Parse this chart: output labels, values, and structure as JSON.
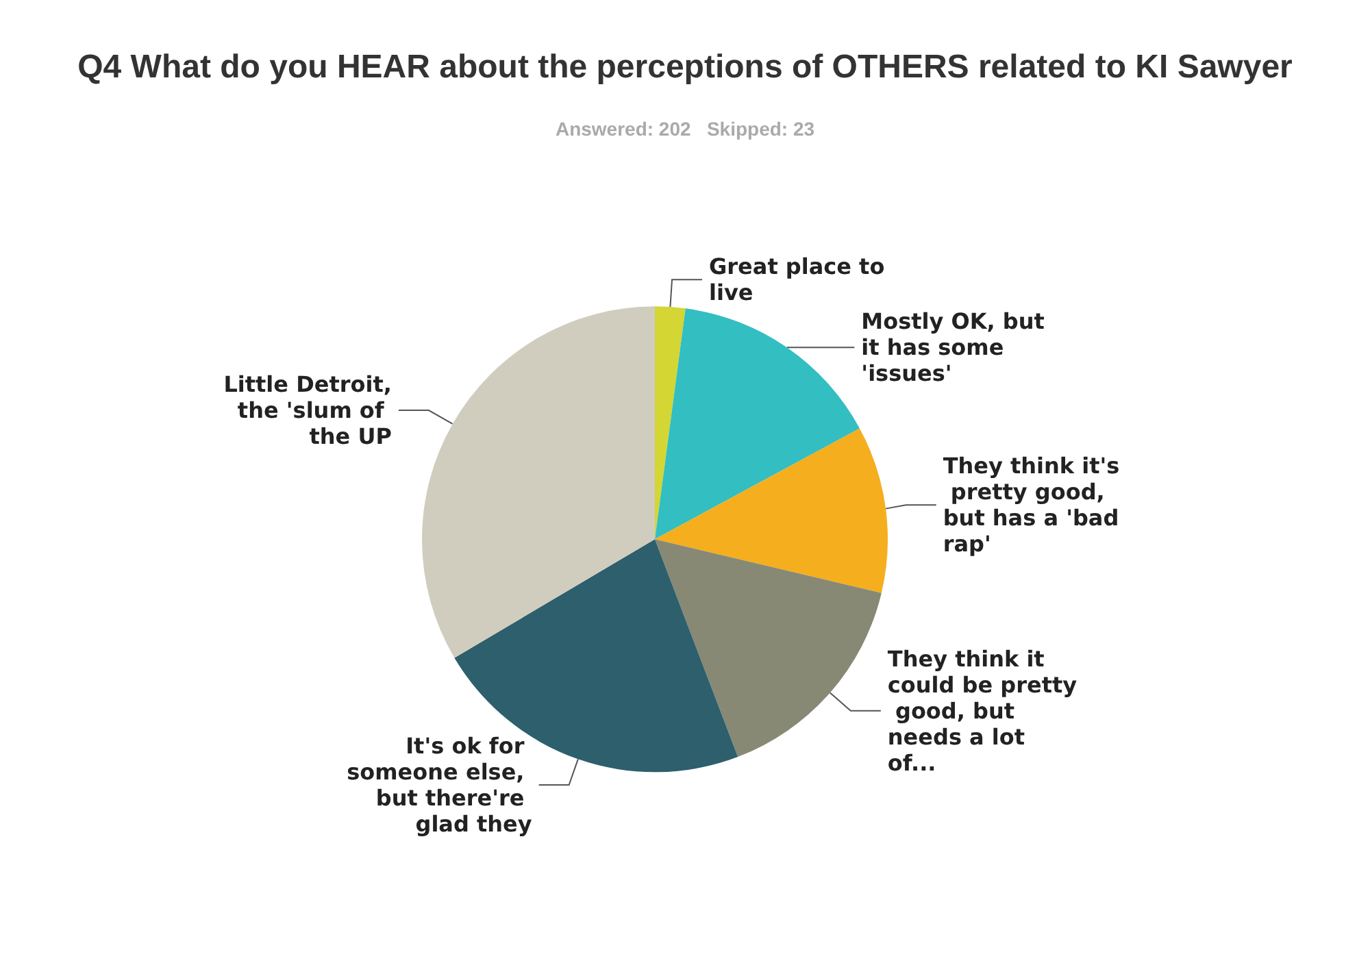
{
  "chart_data": {
    "type": "pie",
    "title": "Q4 What do you HEAR about the perceptions of OTHERS related to KI Sawyer",
    "subtitle": "Answered: 202   Skipped: 23",
    "categories": [
      "Great place to live",
      "Mostly OK, but it has some 'issues'",
      "They think it's pretty good, but has a 'bad rap'",
      "They think it could be pretty good, but needs a lot of...",
      "It's ok for someone else, but there're glad they",
      "Little Detroit, the 'slum of the UP"
    ],
    "values": [
      2.1,
      15.0,
      11.6,
      15.5,
      22.3,
      33.5
    ],
    "colors": [
      "#d4d633",
      "#33bec1",
      "#f5ae1d",
      "#878975",
      "#2d5f6d",
      "#d0cdbf"
    ],
    "legend": false
  }
}
